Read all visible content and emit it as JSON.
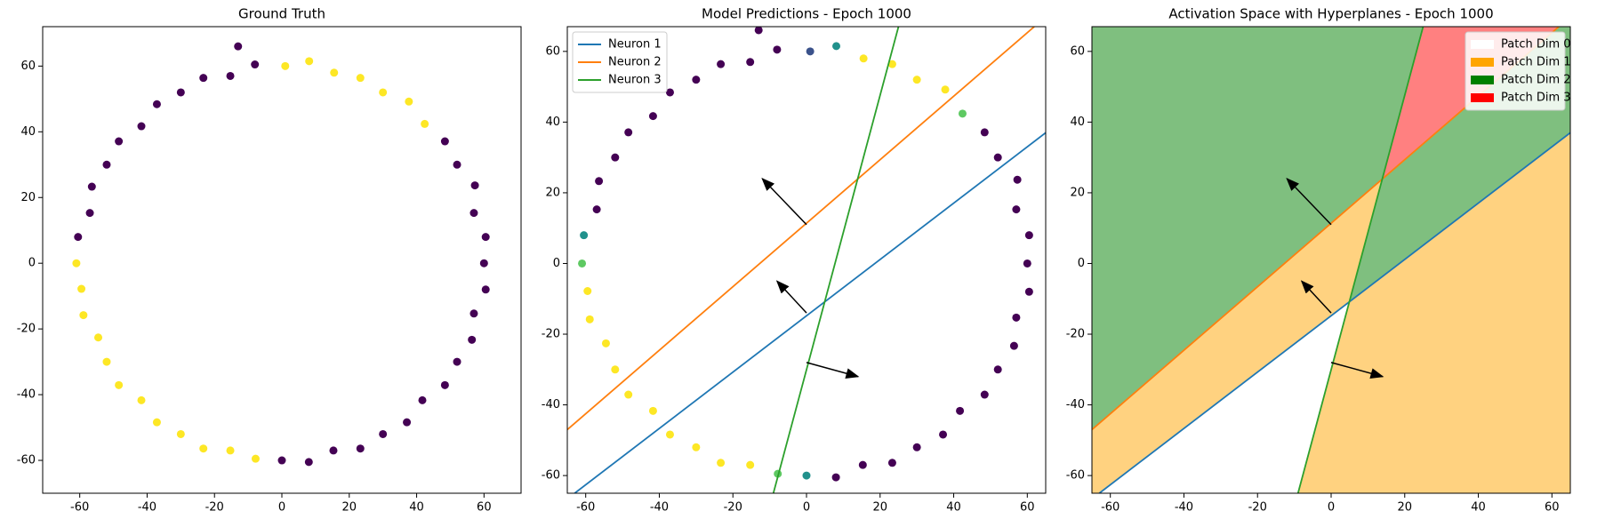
{
  "chart_data": [
    {
      "type": "scatter",
      "title": "Ground Truth",
      "xlim": [
        -71,
        71
      ],
      "ylim": [
        -70,
        72
      ],
      "xticks": [
        -60,
        -40,
        -20,
        0,
        20,
        40,
        60
      ],
      "yticks": [
        -60,
        -40,
        -20,
        0,
        20,
        40,
        60
      ],
      "x": [
        60,
        60.5,
        57.0,
        57.3,
        52.0,
        48.4,
        42.4,
        37.7,
        30.0,
        23.3,
        15.5,
        8.1,
        1,
        -8.0,
        -15.3,
        -23.3,
        -30,
        -37.1,
        -41.7,
        -48.4,
        -52,
        -56.4,
        -57,
        -60.5,
        -61,
        -59.5,
        -58.9,
        -54.5,
        -52,
        -48.4,
        -41.7,
        -37.1,
        -30,
        -23.3,
        -15.3,
        -7.8,
        0,
        8.0,
        15.3,
        23.3,
        30,
        37.1,
        41.7,
        48.4,
        52,
        56.4,
        57,
        60.5,
        -13
      ],
      "values": [
        0,
        8.0,
        15.3,
        23.7,
        30.0,
        37.1,
        42.4,
        49.2,
        52.0,
        56.4,
        58.0,
        61.5,
        60,
        60.5,
        57.0,
        56.4,
        52,
        48.4,
        41.7,
        37.1,
        30,
        23.3,
        15.3,
        8.0,
        0,
        -7.8,
        -15.8,
        -22.6,
        -30,
        -37.1,
        -41.7,
        -48.4,
        -52,
        -56.4,
        -57.0,
        -59.5,
        -60,
        -60.5,
        -57.0,
        -56.4,
        -52,
        -48.4,
        -41.7,
        -37.1,
        -30,
        -23.3,
        -15.3,
        -8.0,
        66
      ],
      "point_colors": [
        "#440154",
        "#440154",
        "#440154",
        "#440154",
        "#440154",
        "#440154",
        "#fde725",
        "#fde725",
        "#fde725",
        "#fde725",
        "#fde725",
        "#fde725",
        "#fde725",
        "#440154",
        "#440154",
        "#440154",
        "#440154",
        "#440154",
        "#440154",
        "#440154",
        "#440154",
        "#440154",
        "#440154",
        "#440154",
        "#fde725",
        "#fde725",
        "#fde725",
        "#fde725",
        "#fde725",
        "#fde725",
        "#fde725",
        "#fde725",
        "#fde725",
        "#fde725",
        "#fde725",
        "#fde725",
        "#440154",
        "#440154",
        "#440154",
        "#440154",
        "#440154",
        "#440154",
        "#440154",
        "#440154",
        "#440154",
        "#440154",
        "#440154",
        "#440154",
        "#440154"
      ]
    },
    {
      "type": "scatter",
      "title": "Model Predictions - Epoch 1000",
      "xlim": [
        -65,
        65
      ],
      "ylim": [
        -65,
        67
      ],
      "xticks": [
        -60,
        -40,
        -20,
        0,
        20,
        40,
        60
      ],
      "yticks": [
        -60,
        -40,
        -20,
        0,
        20,
        40,
        60
      ],
      "x": [
        60,
        60.5,
        57.0,
        57.3,
        52.0,
        48.4,
        42.4,
        37.7,
        30.0,
        23.3,
        15.5,
        8.1,
        1,
        -8.0,
        -15.3,
        -23.3,
        -30,
        -37.1,
        -41.7,
        -48.4,
        -52,
        -56.4,
        -57,
        -60.5,
        -61,
        -59.5,
        -58.9,
        -54.5,
        -52,
        -48.4,
        -41.7,
        -37.1,
        -30,
        -23.3,
        -15.3,
        -7.8,
        0,
        8.0,
        15.3,
        23.3,
        30,
        37.1,
        41.7,
        48.4,
        52,
        56.4,
        57,
        60.5,
        -13
      ],
      "values": [
        0,
        8.0,
        15.3,
        23.7,
        30.0,
        37.1,
        42.4,
        49.2,
        52.0,
        56.4,
        58.0,
        61.5,
        60,
        60.5,
        57.0,
        56.4,
        52,
        48.4,
        41.7,
        37.1,
        30,
        23.3,
        15.3,
        8.0,
        0,
        -7.8,
        -15.8,
        -22.6,
        -30,
        -37.1,
        -41.7,
        -48.4,
        -52,
        -56.4,
        -57.0,
        -59.5,
        -60,
        -60.5,
        -57.0,
        -56.4,
        -52,
        -48.4,
        -41.7,
        -37.1,
        -30,
        -23.3,
        -15.3,
        -8.0,
        66
      ],
      "point_colors": [
        "#440154",
        "#440154",
        "#440154",
        "#440154",
        "#440154",
        "#440154",
        "#5ec962",
        "#fde725",
        "#fde725",
        "#fde725",
        "#fde725",
        "#21918c",
        "#3b528b",
        "#440154",
        "#440154",
        "#440154",
        "#440154",
        "#440154",
        "#440154",
        "#440154",
        "#440154",
        "#440154",
        "#440154",
        "#21918c",
        "#5ec962",
        "#fde725",
        "#fde725",
        "#fde725",
        "#fde725",
        "#fde725",
        "#fde725",
        "#fde725",
        "#fde725",
        "#fde725",
        "#fde725",
        "#5ec962",
        "#21918c",
        "#440154",
        "#440154",
        "#440154",
        "#440154",
        "#440154",
        "#440154",
        "#440154",
        "#440154",
        "#440154",
        "#440154",
        "#440154",
        "#440154"
      ],
      "lines": [
        {
          "name": "Neuron 1",
          "color": "#1f77b4",
          "x": [
            -63,
            65
          ],
          "values": [
            -65,
            37
          ]
        },
        {
          "name": "Neuron 2",
          "color": "#ff7f0e",
          "x": [
            -65,
            61.9
          ],
          "values": [
            -47,
            67
          ]
        },
        {
          "name": "Neuron 3",
          "color": "#2ca02c",
          "x": [
            -9,
            25
          ],
          "values": [
            -65,
            67
          ]
        }
      ],
      "arrows": [
        {
          "x": [
            0,
            -12
          ],
          "values": [
            11,
            24
          ]
        },
        {
          "x": [
            0,
            -8
          ],
          "values": [
            -14,
            -5
          ]
        },
        {
          "x": [
            0,
            14
          ],
          "values": [
            -28,
            -32
          ]
        }
      ],
      "legend_loc": "upper left"
    },
    {
      "type": "regions",
      "title": "Activation Space with Hyperplanes - Epoch 1000",
      "xlim": [
        -65,
        65
      ],
      "ylim": [
        -65,
        67
      ],
      "xticks": [
        -60,
        -40,
        -20,
        0,
        20,
        40,
        60
      ],
      "yticks": [
        -60,
        -40,
        -20,
        0,
        20,
        40,
        60
      ],
      "regions": [
        {
          "color": "#7fbf7f",
          "x": [
            -65,
            13.9,
            25,
            -65
          ],
          "values": [
            -47,
            23.9,
            67,
            67
          ]
        },
        {
          "color": "#ff8080",
          "x": [
            13.9,
            61.9,
            25
          ],
          "values": [
            23.9,
            67,
            67
          ]
        },
        {
          "color": "#7fbf7f",
          "x": [
            4.93,
            13.9,
            61.9,
            65,
            65
          ],
          "values": [
            -10.9,
            23.9,
            67,
            67,
            37
          ]
        },
        {
          "color": "#ffd280",
          "x": [
            -65,
            13.9,
            4.93,
            -63,
            -65
          ],
          "values": [
            -47,
            23.9,
            -10.9,
            -65,
            -65
          ]
        },
        {
          "color": "#ffd280",
          "x": [
            -9,
            4.93,
            65,
            65
          ],
          "values": [
            -65,
            -10.9,
            37,
            -65
          ]
        }
      ],
      "lines": [
        {
          "color": "#1f77b4",
          "x": [
            -63,
            65
          ],
          "values": [
            -65,
            37
          ]
        },
        {
          "color": "#ff7f0e",
          "x": [
            -65,
            61.9
          ],
          "values": [
            -47,
            67
          ]
        },
        {
          "color": "#2ca02c",
          "x": [
            -9,
            25
          ],
          "values": [
            -65,
            67
          ]
        }
      ],
      "arrows": [
        {
          "x": [
            0,
            -12
          ],
          "values": [
            11,
            24
          ]
        },
        {
          "x": [
            0,
            -8
          ],
          "values": [
            -14,
            -5
          ]
        },
        {
          "x": [
            0,
            14
          ],
          "values": [
            -28,
            -32
          ]
        }
      ],
      "legend": [
        {
          "name": "Patch Dim 0",
          "color": "#ffffff"
        },
        {
          "name": "Patch Dim 1",
          "color": "#ffa500"
        },
        {
          "name": "Patch Dim 2",
          "color": "#008000"
        },
        {
          "name": "Patch Dim 3",
          "color": "#ff0000"
        }
      ],
      "legend_loc": "upper right"
    }
  ]
}
